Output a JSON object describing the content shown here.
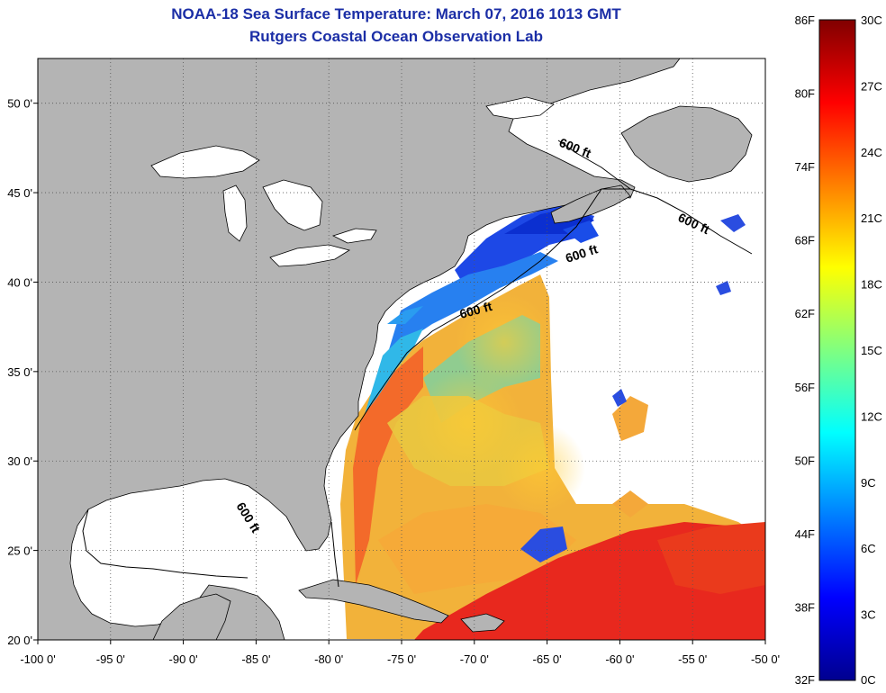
{
  "header": {
    "title": "NOAA-18 Sea Surface Temperature:  March 07, 2016 1013 GMT",
    "subtitle": "Rutgers Coastal Ocean Observation Lab"
  },
  "map": {
    "lon_range": [
      -100,
      -50
    ],
    "lat_range": [
      20,
      52.5
    ],
    "lon_ticks": [
      "-100 0'",
      "-95 0'",
      "-90 0'",
      "-85 0'",
      "-80 0'",
      "-75 0'",
      "-70 0'",
      "-65 0'",
      "-60 0'",
      "-55 0'",
      "-50 0'"
    ],
    "lat_ticks": [
      "20 0'",
      "25 0'",
      "30 0'",
      "35 0'",
      "40 0'",
      "45 0'",
      "50 0'"
    ],
    "contour_label": "600 ft",
    "colors": {
      "land": "#b4b4b4",
      "no_data": "#ffffff"
    }
  },
  "colorbar": {
    "f_labels": [
      "86F",
      "80F",
      "74F",
      "68F",
      "62F",
      "56F",
      "50F",
      "44F",
      "38F",
      "32F"
    ],
    "c_labels": [
      "30C",
      "27C",
      "24C",
      "21C",
      "18C",
      "15C",
      "12C",
      "9C",
      "6C",
      "3C",
      "0C"
    ],
    "range_c": [
      0,
      30
    ],
    "range_f": [
      32,
      86
    ]
  }
}
